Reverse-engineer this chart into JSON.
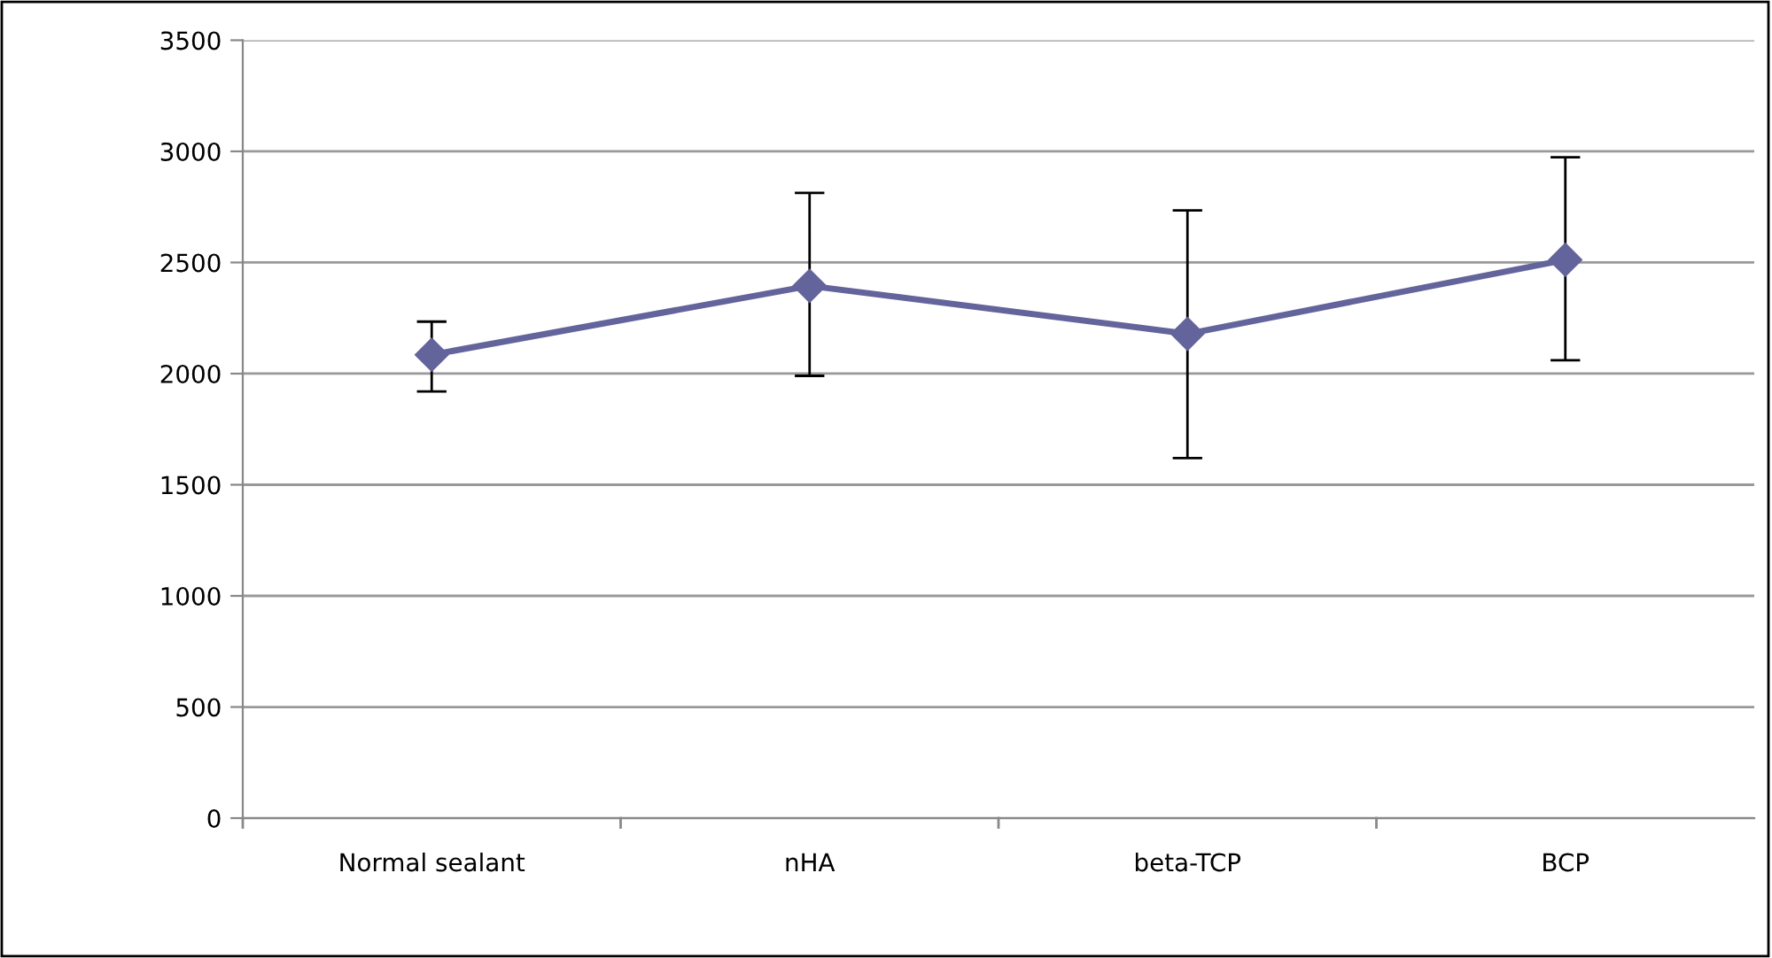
{
  "chart_data": {
    "type": "line",
    "categories": [
      "Normal sealant",
      "nHA",
      "beta-TCP",
      "BCP"
    ],
    "series": [
      {
        "color": "#64649c",
        "values": [
          2085,
          2395,
          2179,
          2512
        ],
        "errors": [
          [
            1920,
            2234
          ],
          [
            1990,
            2813
          ],
          [
            1620,
            2734
          ],
          [
            2060,
            2973
          ]
        ]
      }
    ],
    "ylim": [
      0,
      3500
    ],
    "yticks": [
      0,
      500,
      1000,
      1500,
      2000,
      2500,
      3000,
      3500
    ],
    "grid": "y",
    "marker": "diamond",
    "line_style": "solid",
    "legend": false
  }
}
